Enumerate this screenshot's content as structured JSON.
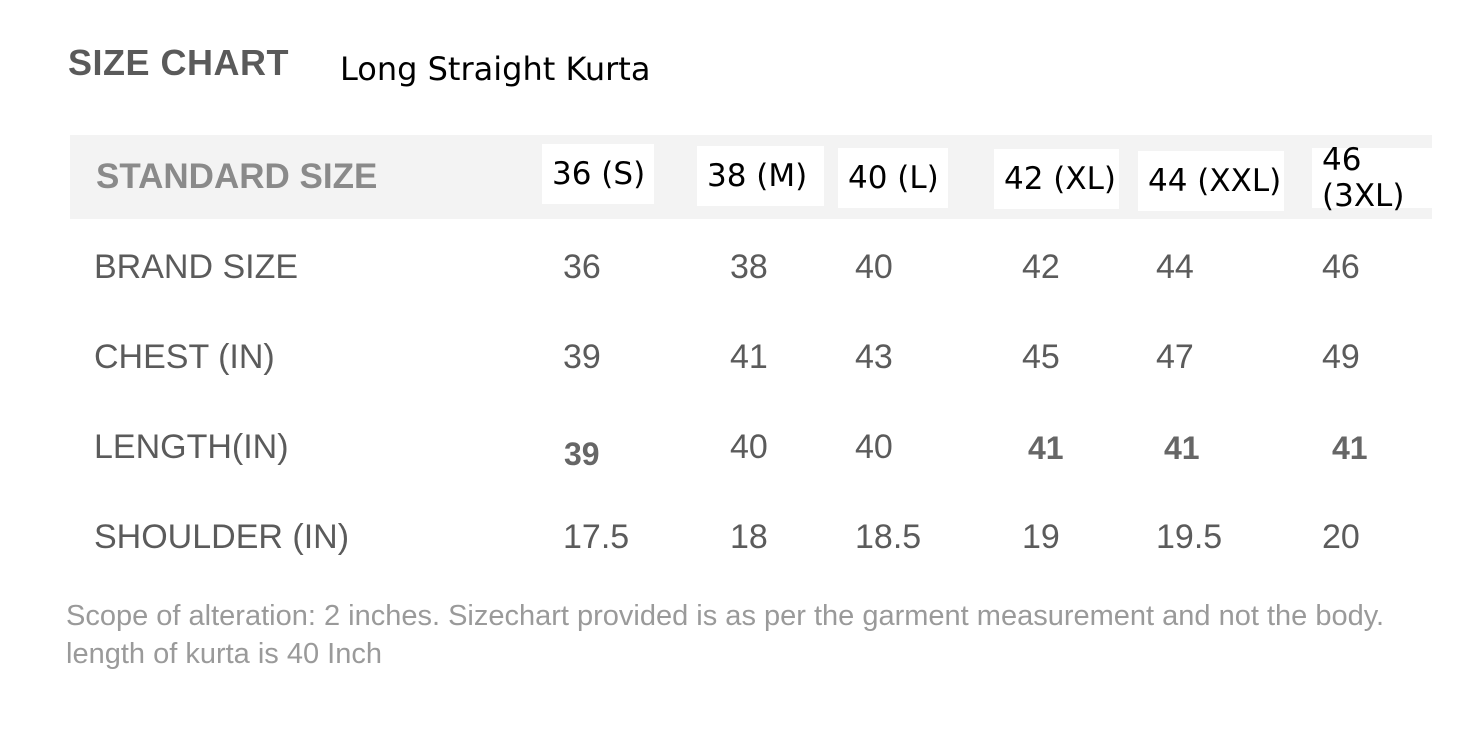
{
  "heading": "SIZE CHART",
  "product": "Long Straight Kurta",
  "table": {
    "header_label": "STANDARD SIZE",
    "sizes": [
      "36 (S)",
      "38 (M)",
      "40 (L)",
      "42 (XL)",
      "44 (XXL)",
      "46 (3XL)"
    ],
    "rows": [
      {
        "label": "BRAND SIZE",
        "values": [
          "36",
          "38",
          "40",
          "42",
          "44",
          "46"
        ]
      },
      {
        "label": "CHEST (IN)",
        "values": [
          "39",
          "41",
          "43",
          "45",
          "47",
          "49"
        ]
      },
      {
        "label": "LENGTH(IN)",
        "values": [
          "39",
          "40",
          "40",
          "41",
          "41",
          "41"
        ]
      },
      {
        "label": "SHOULDER (IN)",
        "values": [
          "17.5",
          "18",
          "18.5",
          "19",
          "19.5",
          "20"
        ]
      }
    ]
  },
  "note": "Scope of alteration: 2 inches. Sizechart provided is as per the garment measurement and not the body. length of kurta is 40 Inch"
}
